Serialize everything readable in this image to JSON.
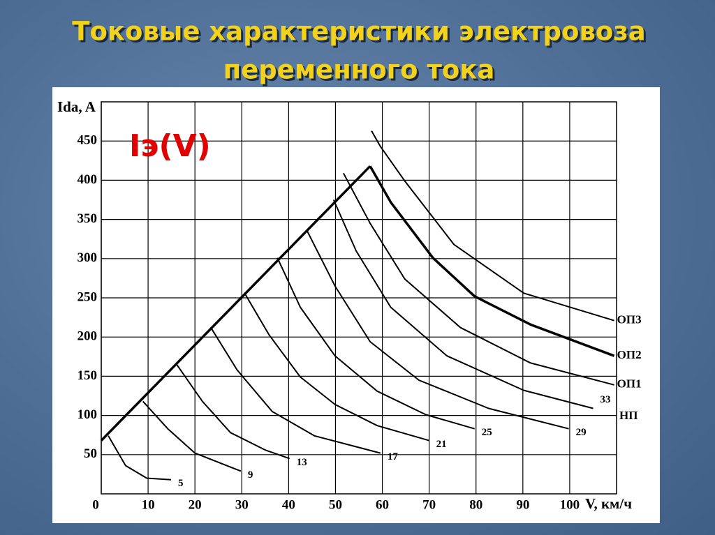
{
  "chart_data": {
    "type": "line",
    "title": [
      "Токовые характеристики электровоза",
      "переменного тока"
    ],
    "ylabel": "Ida, A",
    "xlabel": "V, км/ч",
    "annotations": [
      "Iэ(V)",
      "НП"
    ],
    "xlim": [
      0,
      110
    ],
    "ylim": [
      0,
      500
    ],
    "xticks": [
      0,
      10,
      20,
      30,
      40,
      50,
      60,
      70,
      80,
      90,
      100
    ],
    "yticks": [
      50,
      100,
      150,
      200,
      250,
      300,
      350,
      400,
      450
    ],
    "grid": true,
    "series": [
      {
        "color": "#000000",
        "linewidth": 3.5,
        "x": [
          0,
          57.4
        ],
        "values": [
          68,
          418
        ]
      },
      {
        "name": "5",
        "color": "#000000",
        "linewidth": 2,
        "x": [
          1.5,
          5.2,
          9.7,
          14.9
        ],
        "values": [
          74,
          36,
          20,
          18
        ]
      },
      {
        "name": "9",
        "color": "#000000",
        "linewidth": 2,
        "x": [
          8.9,
          14.2,
          20,
          29.8
        ],
        "values": [
          118,
          83,
          52,
          29
        ]
      },
      {
        "name": "13",
        "color": "#000000",
        "linewidth": 2,
        "x": [
          16.1,
          21.6,
          27.6,
          35,
          40.2
        ],
        "values": [
          165,
          118,
          78,
          56,
          45
        ]
      },
      {
        "name": "17",
        "color": "#000000",
        "linewidth": 2,
        "x": [
          23.4,
          29,
          36.5,
          45.5,
          59.6
        ],
        "values": [
          212,
          158,
          105,
          74,
          52
        ]
      },
      {
        "name": "21",
        "color": "#000000",
        "linewidth": 2,
        "x": [
          30.6,
          35.8,
          42.5,
          49.9,
          58.9,
          70
        ],
        "values": [
          256,
          203,
          149,
          114,
          87,
          68
        ]
      },
      {
        "name": "25",
        "color": "#000000",
        "linewidth": 2,
        "x": [
          37.6,
          42.5,
          49.9,
          58.9,
          69.3,
          79.7
        ],
        "values": [
          301,
          238,
          176,
          131,
          101,
          83
        ]
      },
      {
        "name": "29",
        "color": "#000000",
        "linewidth": 2,
        "x": [
          43.9,
          49.9,
          57.4,
          67.8,
          82.7,
          99.8
        ],
        "values": [
          336,
          265,
          194,
          145,
          109,
          83
        ]
      },
      {
        "name": "33",
        "color": "#000000",
        "linewidth": 2,
        "x": [
          49.6,
          54.4,
          61.8,
          73.8,
          90.2,
          105
        ],
        "values": [
          375,
          310,
          238,
          176,
          132,
          109
        ]
      },
      {
        "name": "ОП1",
        "color": "#000000",
        "linewidth": 2,
        "x": [
          51.7,
          57.4,
          64.8,
          76.7,
          91.6,
          109.5
        ],
        "values": [
          409,
          345,
          274,
          212,
          167,
          139
        ]
      },
      {
        "name": "ОП2",
        "color": "#000000",
        "linewidth": 3.5,
        "x": [
          57.4,
          61.8,
          70.8,
          79.7,
          91.6,
          109.5
        ],
        "values": [
          418,
          372,
          301,
          252,
          216,
          176
        ]
      },
      {
        "name": "ОП3",
        "color": "#000000",
        "linewidth": 2,
        "x": [
          57.7,
          59.6,
          64.8,
          75.3,
          90.2,
          109.5
        ],
        "values": [
          463,
          443,
          399,
          318,
          256,
          221
        ]
      }
    ]
  }
}
